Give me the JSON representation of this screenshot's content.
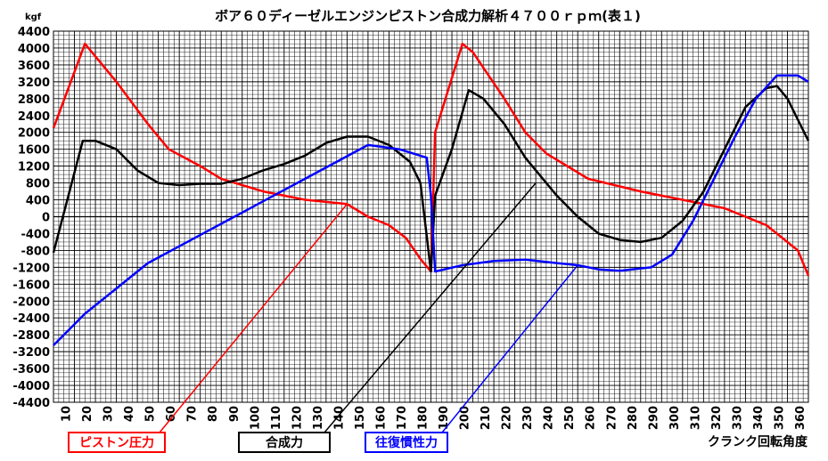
{
  "chart_data": {
    "type": "line",
    "title": "ボア６０ディーゼルエンジンピストン合成力解析４７００ｒｐｍ(表１)",
    "ylabel": "kgf",
    "xlabel": "クランク回転角度",
    "ylim": [
      -4400,
      4400
    ],
    "xlim": [
      0,
      360
    ],
    "yticks": [
      4400,
      4000,
      3600,
      3200,
      2800,
      2400,
      2000,
      1600,
      1200,
      800,
      400,
      0,
      -400,
      -800,
      -1200,
      -1600,
      -2000,
      -2400,
      -2800,
      -3200,
      -3600,
      -4000,
      -4400
    ],
    "xticks": [
      10,
      20,
      30,
      40,
      50,
      60,
      70,
      80,
      90,
      100,
      110,
      120,
      130,
      140,
      150,
      160,
      170,
      180,
      190,
      200,
      210,
      220,
      230,
      240,
      250,
      260,
      270,
      280,
      290,
      300,
      310,
      320,
      330,
      340,
      350,
      360
    ],
    "grid": true,
    "series": [
      {
        "name": "ピストン圧力",
        "color": "#ff0000",
        "x": [
          0,
          15,
          30,
          45,
          55,
          70,
          80,
          100,
          120,
          140,
          150,
          160,
          168,
          175,
          180,
          182,
          195,
          200,
          215,
          225,
          235,
          255,
          280,
          300,
          320,
          340,
          355,
          360
        ],
        "y": [
          2100,
          4100,
          3200,
          2200,
          1600,
          1200,
          900,
          600,
          400,
          300,
          0,
          -200,
          -500,
          -1000,
          -1300,
          2000,
          4100,
          3900,
          2800,
          2000,
          1500,
          900,
          600,
          400,
          200,
          -200,
          -800,
          -1400
        ]
      },
      {
        "name": "合成力",
        "color": "#000000",
        "x": [
          0,
          14,
          20,
          30,
          40,
          50,
          60,
          70,
          80,
          90,
          100,
          110,
          120,
          130,
          140,
          150,
          160,
          170,
          175,
          180,
          182,
          190,
          198,
          205,
          215,
          225,
          240,
          250,
          260,
          270,
          280,
          290,
          300,
          310,
          320,
          330,
          340,
          345,
          350,
          355,
          360
        ],
        "y": [
          -850,
          1800,
          1800,
          1600,
          1100,
          800,
          750,
          780,
          780,
          900,
          1100,
          1250,
          1450,
          1750,
          1900,
          1900,
          1700,
          1300,
          800,
          -1300,
          500,
          1600,
          3000,
          2800,
          2200,
          1400,
          500,
          0,
          -400,
          -550,
          -600,
          -500,
          -100,
          600,
          1600,
          2600,
          3050,
          3100,
          2800,
          2300,
          1800
        ]
      },
      {
        "name": "往復慣性力",
        "color": "#0000ff",
        "x": [
          0,
          15,
          30,
          45,
          60,
          75,
          90,
          105,
          120,
          135,
          150,
          165,
          178,
          180,
          182,
          195,
          210,
          225,
          240,
          250,
          260,
          270,
          285,
          295,
          305,
          315,
          325,
          335,
          345,
          355,
          360
        ],
        "y": [
          -3050,
          -2300,
          -1700,
          -1100,
          -700,
          -300,
          100,
          500,
          900,
          1300,
          1700,
          1600,
          1400,
          500,
          -1300,
          -1150,
          -1050,
          -1020,
          -1100,
          -1150,
          -1250,
          -1280,
          -1200,
          -900,
          -100,
          900,
          1900,
          2800,
          3350,
          3350,
          3200
        ]
      }
    ],
    "callouts": [
      {
        "label": "ピストン圧力",
        "color": "#ff0000",
        "target_x": 140,
        "target_y": 300
      },
      {
        "label": "合成力",
        "color": "#000000",
        "target_x": 230,
        "target_y": 800
      },
      {
        "label": "往復慣性力",
        "color": "#0000ff",
        "target_x": 250,
        "target_y": -1150
      }
    ]
  }
}
